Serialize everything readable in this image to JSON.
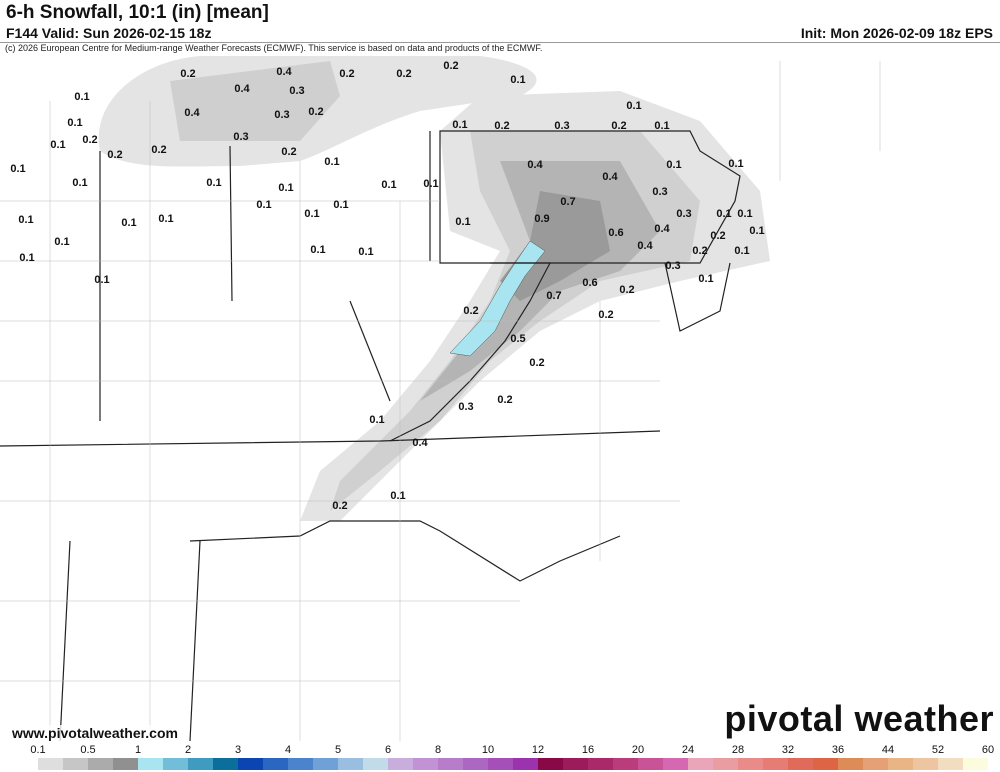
{
  "header": {
    "title": "6-h Snowfall, 10:1 (in) [mean]",
    "valid": "F144 Valid: Sun 2026-02-15 18z",
    "init": "Init: Mon 2026-02-09 18z EPS"
  },
  "credit": "(c) 2026 European Centre for Medium-range Weather Forecasts (ECMWF). This service is based on data and products of the ECMWF.",
  "website": "www.pivotalweather.com",
  "logo": "pivotal weather",
  "map": {
    "value_labels": [
      "0.2",
      "0.4",
      "0.2",
      "0.2",
      "0.2",
      "0.1",
      "0.4",
      "0.3",
      "0.1",
      "0.1",
      "0.2",
      "0.1",
      "0.2",
      "0.2",
      "0.4",
      "0.3",
      "0.2",
      "0.3",
      "0.2",
      "0.1",
      "0.1",
      "0.2",
      "0.3",
      "0.2",
      "0.1",
      "0.1",
      "0.1",
      "0.1",
      "0.1",
      "0.1",
      "0.1",
      "0.1",
      "0.4",
      "0.4",
      "0.1",
      "0.1",
      "0.3",
      "0.1",
      "0.1",
      "0.1",
      "0.1",
      "0.1",
      "0.1",
      "0.7",
      "0.9",
      "0.3",
      "0.1",
      "0.1",
      "0.1",
      "0.1",
      "0.6",
      "0.4",
      "0.2",
      "0.1",
      "0.1",
      "0.1",
      "0.1",
      "0.4",
      "0.2",
      "0.1",
      "0.3",
      "0.1",
      "0.6",
      "0.1",
      "0.2",
      "0.7",
      "0.2",
      "0.2",
      "0.5",
      "0.2",
      "0.2",
      "0.3",
      "0.1",
      "0.4",
      "0.1",
      "0.2"
    ]
  },
  "legend": {
    "labels": [
      "0.1",
      "0.5",
      "1",
      "2",
      "3",
      "4",
      "5",
      "6",
      "8",
      "10",
      "12",
      "16",
      "20",
      "24",
      "28",
      "32",
      "36",
      "44",
      "52",
      "60"
    ],
    "colors": [
      "#ffffff",
      "#dedede",
      "#c6c6c6",
      "#ababab",
      "#909090",
      "#a9e5f0",
      "#72bdd8",
      "#3f9bc0",
      "#0c6e9b",
      "#0b45b2",
      "#2b66c1",
      "#4b83cd",
      "#6fa0d6",
      "#99bee0",
      "#c1dbe9",
      "#c9aedd",
      "#c192d4",
      "#b77dca",
      "#ac67c3",
      "#a450b8",
      "#9a33ad",
      "#880946",
      "#9b1b5b",
      "#a92969",
      "#b93d7b",
      "#c95397",
      "#d569b1",
      "#eba5b9",
      "#e99da1",
      "#e88b89",
      "#e57d75",
      "#e16b5b",
      "#dd6545",
      "#dd8b57",
      "#e5a175",
      "#e9b585",
      "#edc5a1",
      "#f3ddc1",
      "#fbfbdd"
    ]
  }
}
